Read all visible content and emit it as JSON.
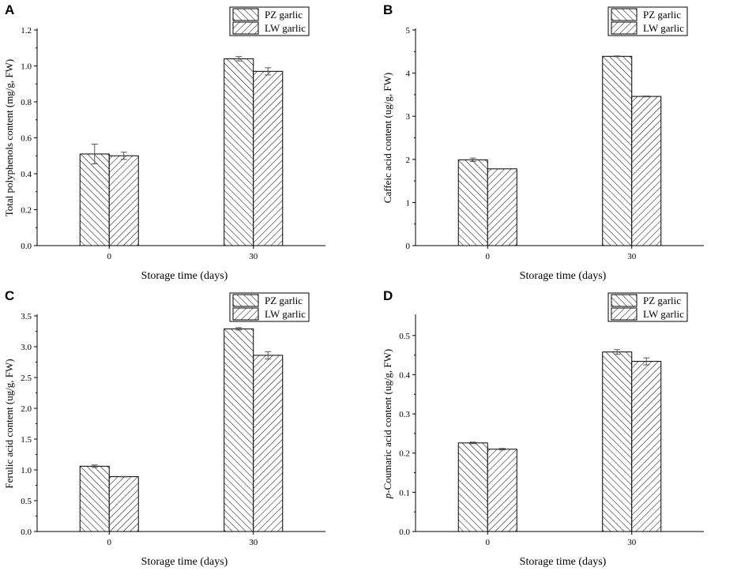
{
  "chart_data": [
    {
      "panel_label": "A",
      "type": "bar",
      "categories": [
        "0",
        "30"
      ],
      "series": [
        {
          "name": "PZ garlic",
          "values": [
            0.51,
            1.04
          ],
          "errors": [
            0.055,
            0.012
          ]
        },
        {
          "name": "LW garlic",
          "values": [
            0.5,
            0.97
          ],
          "errors": [
            0.02,
            0.02
          ]
        }
      ],
      "xlabel": "Storage time (days)",
      "ylabel": "Total polyphenols content (mg/g, FW)",
      "ylim": [
        0,
        1.2
      ],
      "yticks": [
        0.0,
        0.2,
        0.4,
        0.6,
        0.8,
        1.0,
        1.2
      ],
      "ytick_labels": [
        "0.0",
        "0.2",
        "0.4",
        "0.6",
        "0.8",
        "1.0",
        "1.2"
      ],
      "legend_position": "top-right"
    },
    {
      "panel_label": "B",
      "type": "bar",
      "categories": [
        "0",
        "30"
      ],
      "series": [
        {
          "name": "PZ garlic",
          "values": [
            1.99,
            4.39
          ],
          "errors": [
            0.04,
            0.01
          ]
        },
        {
          "name": "LW garlic",
          "values": [
            1.78,
            3.46
          ],
          "errors": [
            0.005,
            0.01
          ]
        }
      ],
      "xlabel": "Storage time (days)",
      "ylabel": "Caffeic acid content (ug/g, FW)",
      "ylim": [
        0,
        5
      ],
      "yticks": [
        0,
        1,
        2,
        3,
        4,
        5
      ],
      "ytick_labels": [
        "0",
        "1",
        "2",
        "3",
        "4",
        "5"
      ],
      "legend_position": "top-right"
    },
    {
      "panel_label": "C",
      "type": "bar",
      "categories": [
        "0",
        "30"
      ],
      "series": [
        {
          "name": "PZ garlic",
          "values": [
            1.06,
            3.29
          ],
          "errors": [
            0.02,
            0.02
          ]
        },
        {
          "name": "LW garlic",
          "values": [
            0.89,
            2.86
          ],
          "errors": [
            0.005,
            0.06
          ]
        }
      ],
      "xlabel": "Storage time (days)",
      "ylabel": "Ferulic acid content (ug/g, FW)",
      "ylim": [
        0,
        3.5
      ],
      "yticks": [
        0.0,
        0.5,
        1.0,
        1.5,
        2.0,
        2.5,
        3.0,
        3.5
      ],
      "ytick_labels": [
        "0.0",
        "0.5",
        "1.0",
        "1.5",
        "2.0",
        "2.5",
        "3.0",
        "3.5"
      ],
      "legend_position": "top-right"
    },
    {
      "panel_label": "D",
      "type": "bar",
      "categories": [
        "0",
        "30"
      ],
      "series": [
        {
          "name": "PZ garlic",
          "values": [
            0.226,
            0.458
          ],
          "errors": [
            0.002,
            0.006
          ]
        },
        {
          "name": "LW garlic",
          "values": [
            0.21,
            0.434
          ],
          "errors": [
            0.002,
            0.009
          ]
        }
      ],
      "xlabel": "Storage time (days)",
      "ylabel_prefix": "p",
      "ylabel": "-Coumaric acid content (ug/g, FW)",
      "ylim": [
        0,
        0.55
      ],
      "yticks": [
        0.0,
        0.1,
        0.2,
        0.3,
        0.4,
        0.5
      ],
      "ytick_labels": [
        "0.0",
        "0.1",
        "0.2",
        "0.3",
        "0.4",
        "0.5"
      ],
      "legend_position": "top-right"
    }
  ]
}
